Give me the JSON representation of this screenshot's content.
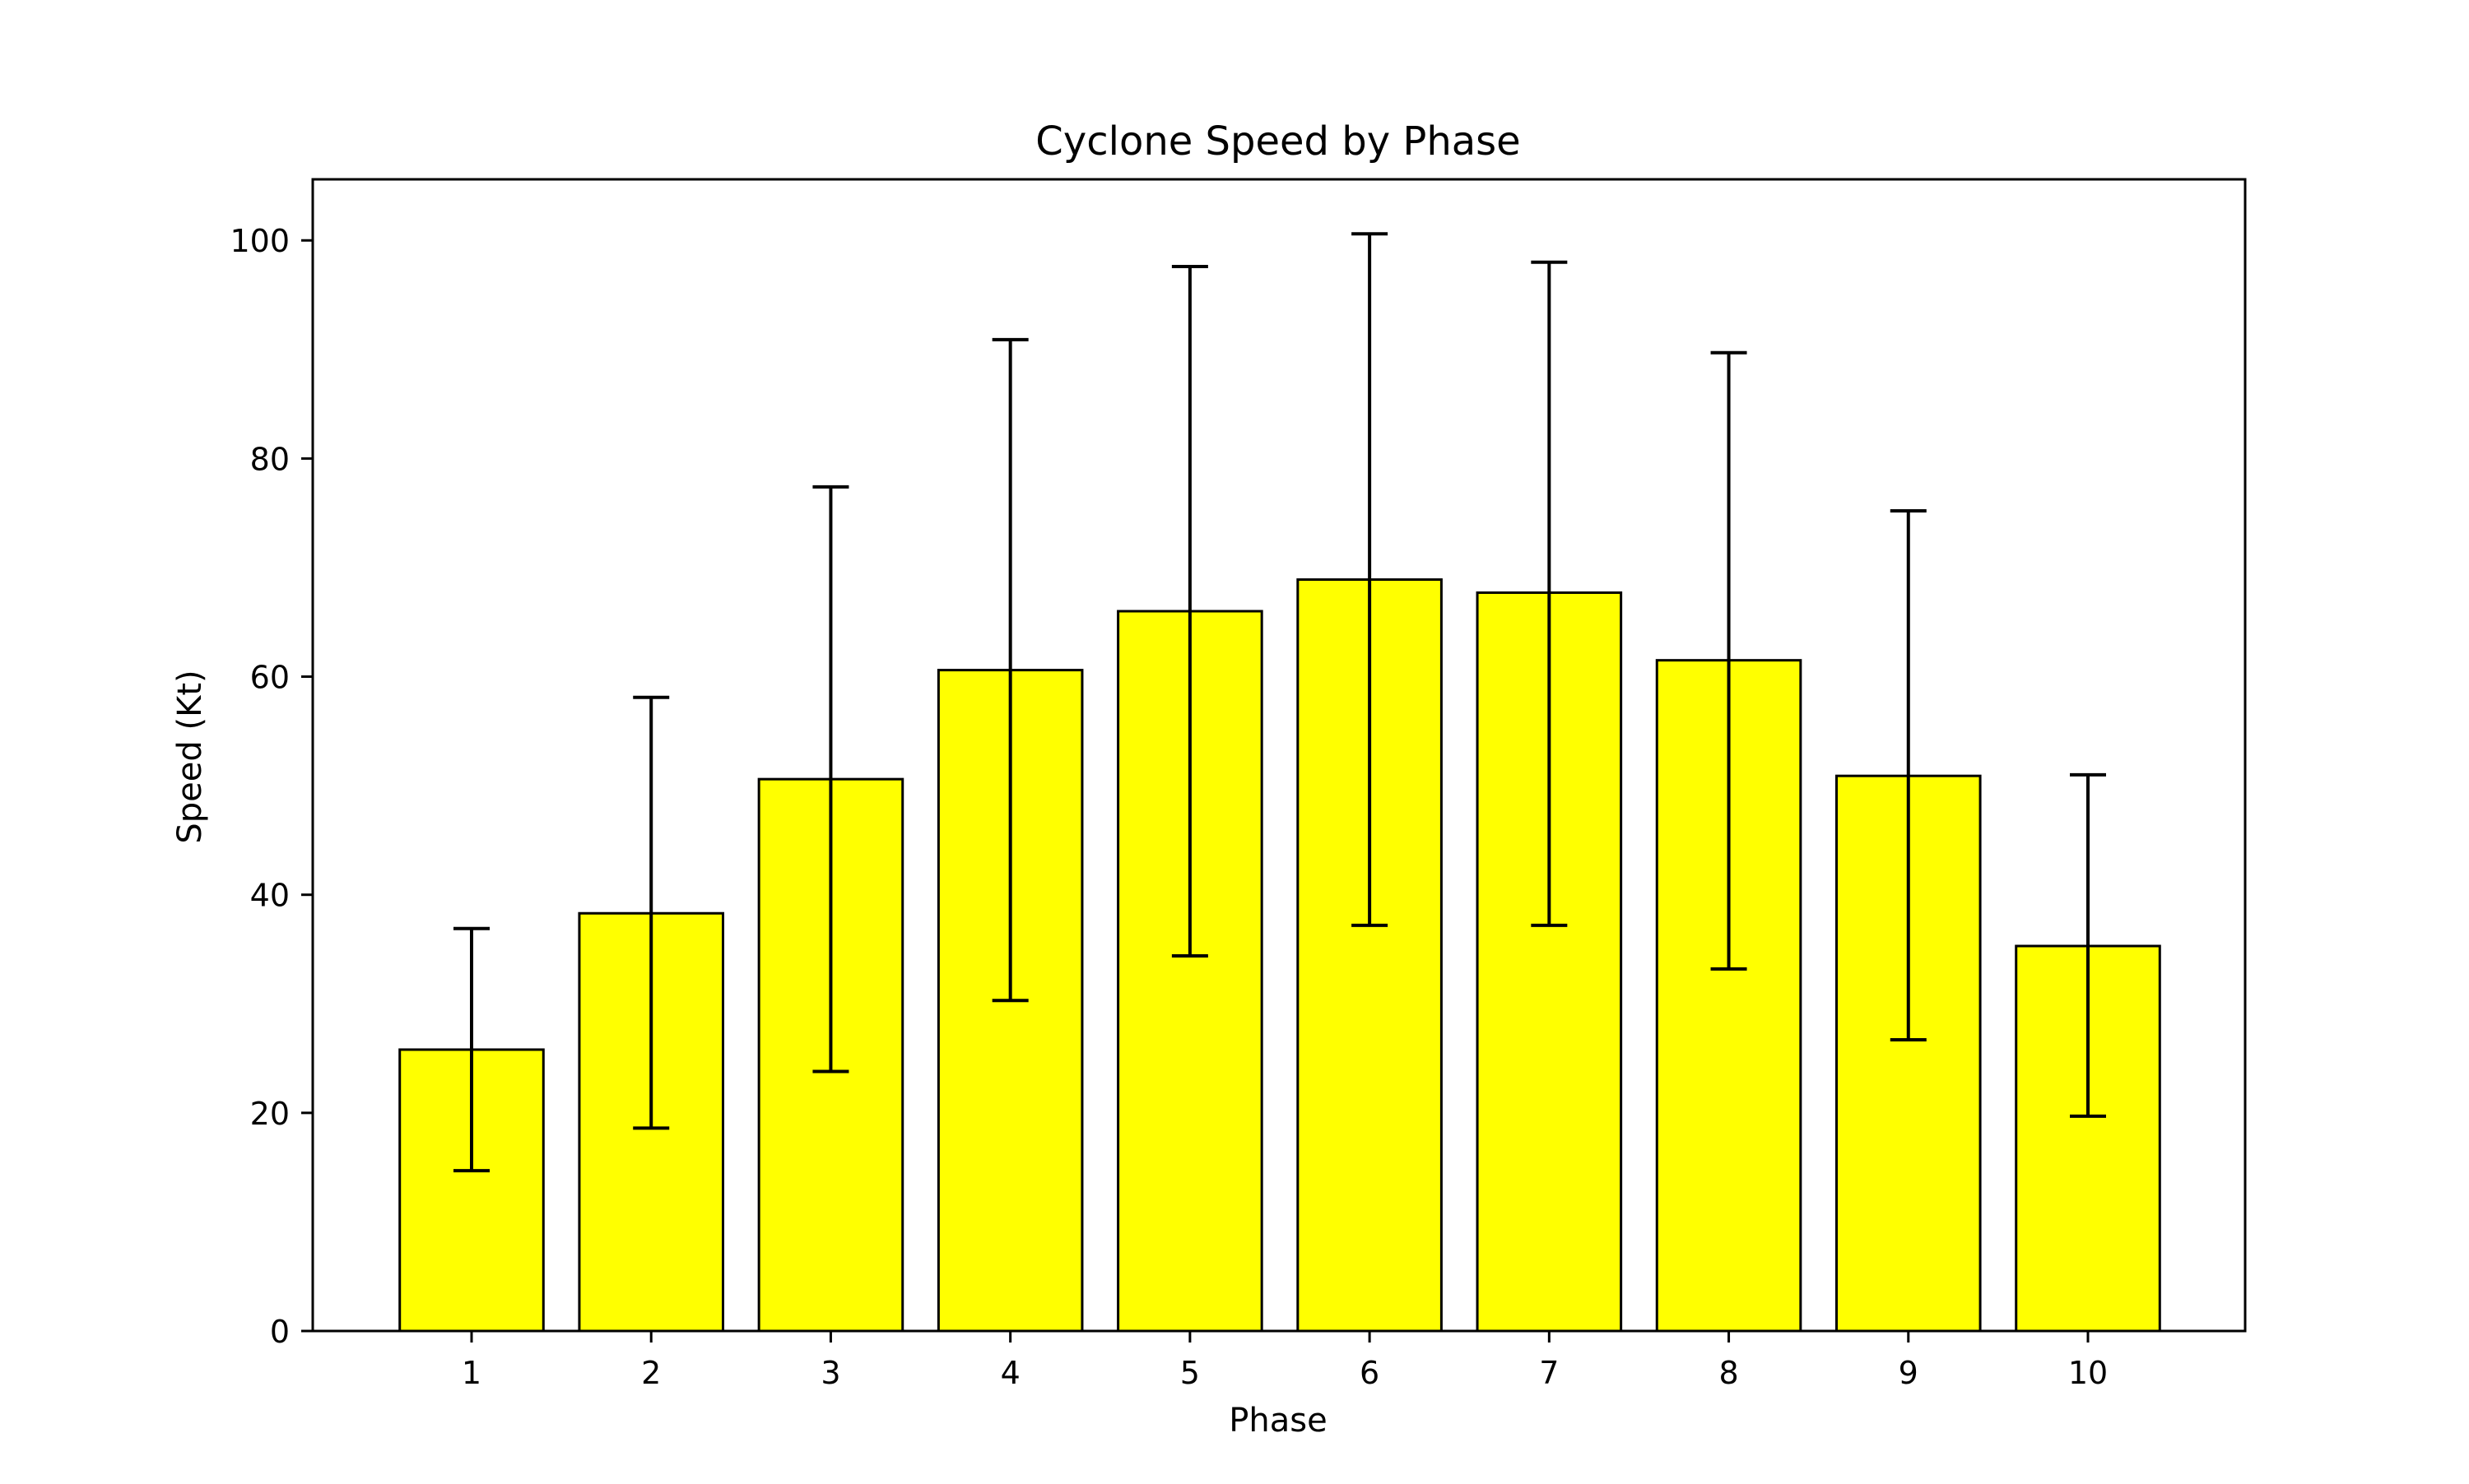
{
  "chart_data": {
    "type": "bar",
    "title": "Cyclone Speed by Phase",
    "xlabel": "Phase",
    "ylabel": "Speed (Kt)",
    "categories": [
      "1",
      "2",
      "3",
      "4",
      "5",
      "6",
      "7",
      "8",
      "9",
      "10"
    ],
    "values": [
      25.8,
      38.3,
      50.6,
      60.6,
      66.0,
      68.9,
      67.7,
      61.5,
      50.9,
      35.3
    ],
    "error_low": [
      14.7,
      18.6,
      23.8,
      30.3,
      34.4,
      37.2,
      37.2,
      33.2,
      26.7,
      19.7
    ],
    "error_high": [
      36.9,
      58.1,
      77.4,
      90.9,
      97.6,
      100.6,
      98.0,
      89.7,
      75.2,
      51.0
    ],
    "ylim": [
      0,
      105.6
    ],
    "yticks": [
      0,
      20,
      40,
      60,
      80,
      100
    ],
    "bar_color": "#ffff00",
    "edge_color": "#000000",
    "grid": false,
    "legend": false
  }
}
